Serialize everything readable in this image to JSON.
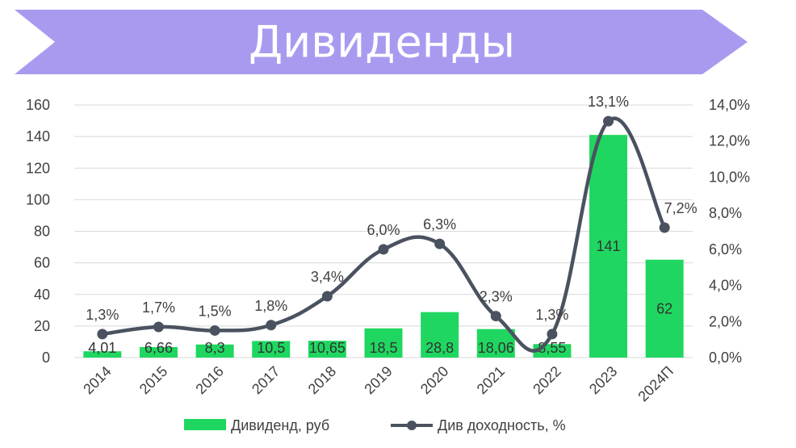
{
  "title": "Дивиденды",
  "colors": {
    "banner": "#a99af0",
    "bar": "#1fd760",
    "line": "#4a5260",
    "grid": "#d9d9d9",
    "text": "#404040"
  },
  "legend": {
    "bar_label": "Дивиденд, руб",
    "line_label": "Див доходность, %"
  },
  "chart_data": {
    "type": "bar",
    "title": "Дивиденды",
    "categories": [
      "2014",
      "2015",
      "2016",
      "2017",
      "2018",
      "2019",
      "2020",
      "2021",
      "2022",
      "2023",
      "2024П"
    ],
    "series": [
      {
        "name": "Дивиденд, руб",
        "type": "bar",
        "axis": "left",
        "values": [
          4.01,
          6.66,
          8.3,
          10.5,
          10.65,
          18.5,
          28.8,
          18.06,
          8.55,
          141,
          62
        ],
        "labels": [
          "4,01",
          "6,66",
          "8,3",
          "10,5",
          "10,65",
          "18,5",
          "28,8",
          "18,06",
          "8,55",
          "141",
          "62"
        ]
      },
      {
        "name": "Див доходность, %",
        "type": "line",
        "axis": "right",
        "values": [
          1.3,
          1.7,
          1.5,
          1.8,
          3.4,
          6.0,
          6.3,
          2.3,
          1.3,
          13.1,
          7.2
        ],
        "labels": [
          "1,3%",
          "1,7%",
          "1,5%",
          "1,8%",
          "3,4%",
          "6,0%",
          "6,3%",
          "2,3%",
          "1,3%",
          "13,1%",
          "7,2%"
        ]
      }
    ],
    "y_left": {
      "range": [
        0,
        160
      ],
      "ticks": [
        0,
        20,
        40,
        60,
        80,
        100,
        120,
        140,
        160
      ],
      "tick_labels": [
        "0",
        "20",
        "40",
        "60",
        "80",
        "100",
        "120",
        "140",
        "160"
      ]
    },
    "y_right": {
      "range": [
        0,
        14
      ],
      "ticks": [
        0,
        2,
        4,
        6,
        8,
        10,
        12,
        14
      ],
      "tick_labels": [
        "0,0%",
        "2,0%",
        "4,0%",
        "6,0%",
        "8,0%",
        "10,0%",
        "12,0%",
        "14,0%"
      ]
    },
    "grid": true,
    "legend_position": "bottom"
  }
}
